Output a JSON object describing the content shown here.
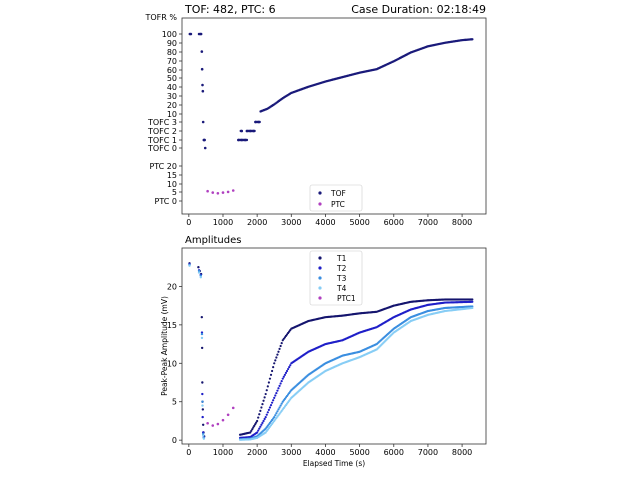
{
  "header": {
    "status_text": "TOF: 482, PTC: 6",
    "duration_text": "Case Duration: 02:18:49"
  },
  "colors": {
    "TOF": "#1a1a7a",
    "PTC": "#b040c0",
    "T1": "#15156e",
    "T2": "#1f1fc8",
    "T3": "#3a8ee0",
    "T4": "#87cdf5",
    "PTC1": "#b040c0"
  },
  "chart_data": [
    {
      "type": "scatter",
      "title": "",
      "xlabel": "",
      "ylabel": "",
      "xlim": [
        -200,
        8700
      ],
      "x_ticks": [
        0,
        1000,
        2000,
        3000,
        4000,
        5000,
        6000,
        7000,
        8000
      ],
      "y_tick_labels": [
        "TOFR %",
        "100",
        "90",
        "80",
        "70",
        "60",
        "50",
        "40",
        "30",
        "20",
        "10",
        "TOFC 3",
        "TOFC 2",
        "TOFC 1",
        "TOFC 0",
        "PTC 20",
        "15",
        "10",
        "5",
        "PTC  0"
      ],
      "legend": {
        "placement": "bottom-center",
        "entries": [
          "TOF",
          "PTC"
        ]
      },
      "series": [
        {
          "name": "TOF",
          "scale": "TOFR % / TOFC",
          "points": [
            [
              30,
              100
            ],
            [
              60,
              100
            ],
            [
              300,
              100
            ],
            [
              340,
              100
            ],
            [
              360,
              100
            ],
            [
              380,
              80
            ],
            [
              390,
              60
            ],
            [
              400,
              42
            ],
            [
              410,
              35
            ],
            [
              420,
              "TOFC 3"
            ],
            [
              440,
              "TOFC 1"
            ],
            [
              460,
              "TOFC 1"
            ],
            [
              480,
              "TOFC 0"
            ],
            [
              1450,
              "TOFC 1"
            ],
            [
              1550,
              "TOFC 1"
            ],
            [
              1650,
              "TOFC 1"
            ],
            [
              1550,
              "TOFC 2"
            ],
            [
              1700,
              "TOFC 2"
            ],
            [
              1800,
              "TOFC 2"
            ],
            [
              1900,
              "TOFC 2"
            ],
            [
              1950,
              "TOFC 3"
            ],
            [
              2050,
              "TOFC 3"
            ],
            [
              2100,
              12
            ],
            [
              2300,
              15
            ],
            [
              2500,
              20
            ],
            [
              2750,
              27
            ],
            [
              3000,
              33
            ],
            [
              3500,
              40
            ],
            [
              4000,
              46
            ],
            [
              4500,
              51
            ],
            [
              5000,
              56
            ],
            [
              5500,
              60
            ],
            [
              6000,
              69
            ],
            [
              6500,
              79
            ],
            [
              7000,
              86
            ],
            [
              7500,
              90
            ],
            [
              8000,
              93
            ],
            [
              8300,
              94
            ]
          ]
        },
        {
          "name": "PTC",
          "scale": "PTC count",
          "points": [
            [
              550,
              14
            ],
            [
              700,
              12
            ],
            [
              850,
              11
            ],
            [
              1000,
              12
            ],
            [
              1150,
              13
            ],
            [
              1300,
              15
            ]
          ]
        }
      ]
    },
    {
      "type": "scatter",
      "title": "Amplitudes",
      "xlabel": "Elapsed Time (s)",
      "ylabel": "Peak-Peak Amplitude (mV)",
      "xlim": [
        -200,
        8700
      ],
      "ylim": [
        -0.5,
        25
      ],
      "x_ticks": [
        0,
        1000,
        2000,
        3000,
        4000,
        5000,
        6000,
        7000,
        8000
      ],
      "y_ticks": [
        0,
        5,
        10,
        15,
        20
      ],
      "legend": {
        "placement": "top-center",
        "entries": [
          "T1",
          "T2",
          "T3",
          "T4",
          "PTC1"
        ]
      },
      "series": [
        {
          "name": "T1",
          "early": [
            [
              20,
              23
            ],
            [
              280,
              22.5
            ],
            [
              320,
              22
            ],
            [
              360,
              21.6
            ],
            [
              380,
              16
            ],
            [
              390,
              12
            ],
            [
              395,
              7.5
            ],
            [
              400,
              5
            ],
            [
              410,
              4
            ],
            [
              420,
              2
            ],
            [
              430,
              1
            ],
            [
              450,
              0.5
            ]
          ],
          "curve": [
            [
              1500,
              0.7
            ],
            [
              1800,
              1.0
            ],
            [
              2000,
              2.5
            ],
            [
              2250,
              6
            ],
            [
              2500,
              10
            ],
            [
              2750,
              13
            ],
            [
              3000,
              14.5
            ],
            [
              3500,
              15.5
            ],
            [
              4000,
              16
            ],
            [
              4500,
              16.2
            ],
            [
              5000,
              16.5
            ],
            [
              5500,
              16.7
            ],
            [
              6000,
              17.5
            ],
            [
              6500,
              18
            ],
            [
              7000,
              18.2
            ],
            [
              7500,
              18.3
            ],
            [
              8300,
              18.3
            ]
          ]
        },
        {
          "name": "T2",
          "early": [
            [
              20,
              22.9
            ],
            [
              300,
              22.1
            ],
            [
              350,
              21.5
            ],
            [
              385,
              14
            ],
            [
              395,
              6
            ],
            [
              405,
              3
            ],
            [
              420,
              1
            ],
            [
              440,
              0.4
            ]
          ],
          "curve": [
            [
              1500,
              0.3
            ],
            [
              1800,
              0.4
            ],
            [
              2000,
              1
            ],
            [
              2250,
              3
            ],
            [
              2500,
              5.5
            ],
            [
              2750,
              8
            ],
            [
              3000,
              10
            ],
            [
              3500,
              11.5
            ],
            [
              4000,
              12.5
            ],
            [
              4500,
              13
            ],
            [
              5000,
              14
            ],
            [
              5500,
              14.7
            ],
            [
              6000,
              16
            ],
            [
              6500,
              17
            ],
            [
              7000,
              17.6
            ],
            [
              7500,
              17.9
            ],
            [
              8300,
              18
            ]
          ]
        },
        {
          "name": "T3",
          "early": [
            [
              20,
              22.8
            ],
            [
              300,
              22
            ],
            [
              350,
              21.4
            ],
            [
              385,
              13.8
            ],
            [
              400,
              5
            ],
            [
              420,
              0.8
            ],
            [
              440,
              0.3
            ]
          ],
          "curve": [
            [
              1500,
              0.1
            ],
            [
              1800,
              0.2
            ],
            [
              2000,
              0.5
            ],
            [
              2250,
              1.5
            ],
            [
              2500,
              3
            ],
            [
              2750,
              5
            ],
            [
              3000,
              6.5
            ],
            [
              3500,
              8.5
            ],
            [
              4000,
              10
            ],
            [
              4500,
              11
            ],
            [
              5000,
              11.5
            ],
            [
              5500,
              12.5
            ],
            [
              6000,
              14.5
            ],
            [
              6500,
              16
            ],
            [
              7000,
              16.8
            ],
            [
              7500,
              17.2
            ],
            [
              8300,
              17.4
            ]
          ]
        },
        {
          "name": "T4",
          "early": [
            [
              20,
              22.7
            ],
            [
              300,
              21.8
            ],
            [
              350,
              21.2
            ],
            [
              385,
              13.3
            ],
            [
              400,
              4.5
            ],
            [
              420,
              0.6
            ],
            [
              440,
              0.2
            ]
          ],
          "curve": [
            [
              1500,
              0.05
            ],
            [
              1800,
              0.1
            ],
            [
              2000,
              0.3
            ],
            [
              2250,
              1
            ],
            [
              2500,
              2.5
            ],
            [
              2750,
              4
            ],
            [
              3000,
              5.5
            ],
            [
              3500,
              7.5
            ],
            [
              4000,
              9
            ],
            [
              4500,
              10
            ],
            [
              5000,
              10.8
            ],
            [
              5500,
              11.8
            ],
            [
              6000,
              14
            ],
            [
              6500,
              15.5
            ],
            [
              7000,
              16.3
            ],
            [
              7500,
              16.8
            ],
            [
              8300,
              17.2
            ]
          ]
        },
        {
          "name": "PTC1",
          "points": [
            [
              550,
              2.2
            ],
            [
              700,
              1.9
            ],
            [
              850,
              2.1
            ],
            [
              1000,
              2.6
            ],
            [
              1150,
              3.3
            ],
            [
              1300,
              4.2
            ]
          ]
        }
      ]
    }
  ]
}
